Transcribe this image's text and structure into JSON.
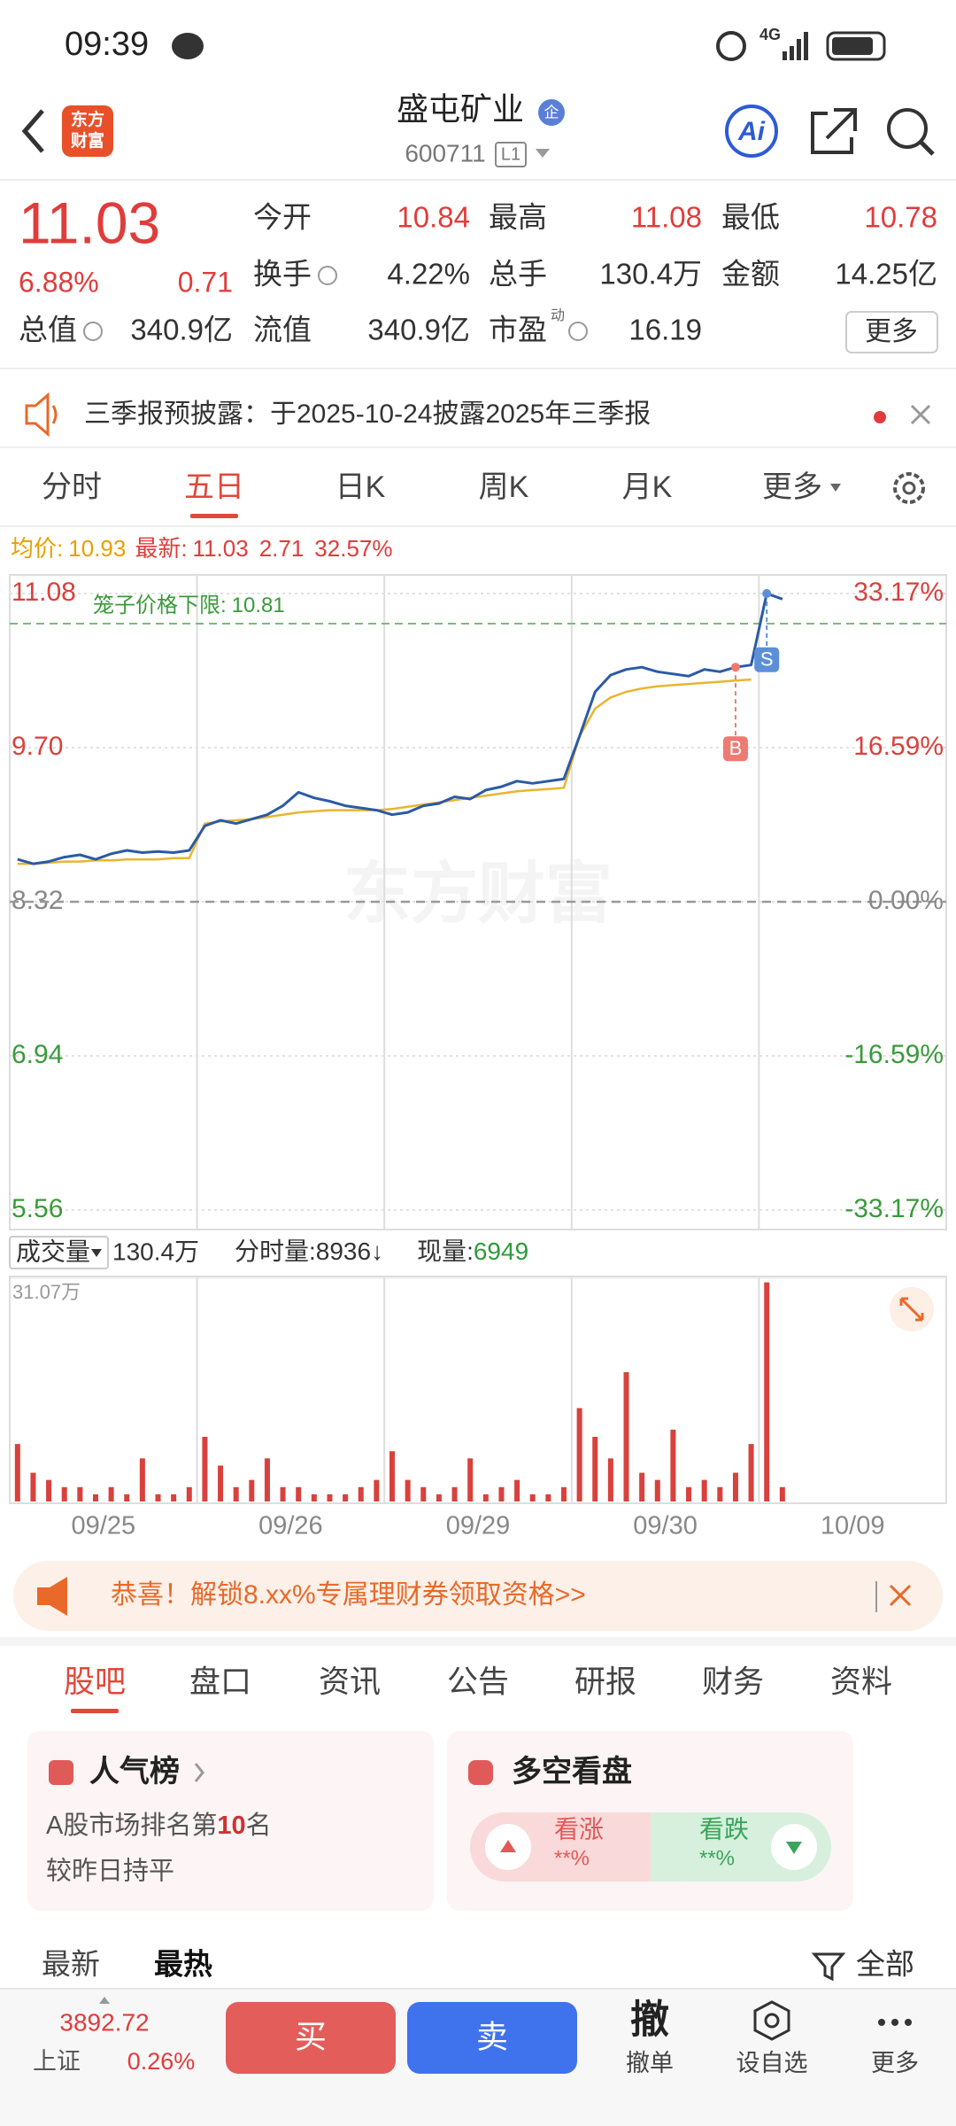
{
  "status_bar": {
    "time": "09:39",
    "network": "4G"
  },
  "header": {
    "logo": [
      "东方",
      "财富"
    ],
    "name": "盛屯矿业",
    "badge": "企",
    "code": "600711",
    "level": "L1",
    "ai": "Ai"
  },
  "quote": {
    "price": "11.03",
    "change_pct": "6.88%",
    "change": "0.71",
    "fields": [
      {
        "label": "今开",
        "value": "10.84"
      },
      {
        "label": "最高",
        "value": "11.08"
      },
      {
        "label": "最低",
        "value": "10.78"
      },
      {
        "label": "换手",
        "value": "4.22%"
      },
      {
        "label": "总手",
        "value": "130.4万"
      },
      {
        "label": "金额",
        "value": "14.25亿"
      },
      {
        "label": "总值",
        "value": "340.9亿"
      },
      {
        "label": "流值",
        "value": "340.9亿"
      },
      {
        "label": "市盈",
        "sup": "动",
        "value": "16.19"
      }
    ],
    "more": "更多"
  },
  "notice": "三季报预披露：于2025-10-24披露2025年三季报",
  "chart_tabs": {
    "items": [
      "分时",
      "五日",
      "日K",
      "周K",
      "月K",
      "更多"
    ],
    "active": 1
  },
  "chart_info": {
    "avg": "10.93",
    "latest": "11.03",
    "change": "2.71",
    "change_pct": "32.57%"
  },
  "chart_data": [
    {
      "type": "line",
      "watermark": "东方财富",
      "ylim": [
        5.56,
        11.08
      ],
      "yticks": [
        11.08,
        {
          "value": 9.7,
          "label": "9.70"
        },
        8.32,
        6.94,
        5.56
      ],
      "y2lim": [
        -33.17,
        33.17
      ],
      "y2ticks": [
        {
          "value": 33.17,
          "label": "33.17%"
        },
        {
          "value": 16.59,
          "label": "16.59%"
        },
        {
          "value": 0,
          "label": "0.00%"
        },
        {
          "value": -16.59,
          "label": "-16.59%"
        },
        {
          "value": -33.17,
          "label": "-33.17%"
        }
      ],
      "limit_label": "笼子价格下限:",
      "limit": 10.81,
      "trade_marks": [
        "B",
        "S"
      ],
      "series": [
        {
          "name": "最新:",
          "color": "#2b5aa6",
          "values": [
            8.7,
            8.66,
            8.68,
            8.72,
            8.74,
            8.7,
            8.75,
            8.78,
            8.76,
            8.77,
            8.76,
            8.78,
            9.0,
            9.05,
            9.02,
            9.06,
            9.1,
            9.18,
            9.3,
            9.25,
            9.22,
            9.18,
            9.16,
            9.14,
            9.1,
            9.12,
            9.18,
            9.2,
            9.26,
            9.24,
            9.32,
            9.35,
            9.4,
            9.38,
            9.4,
            9.42,
            9.8,
            10.2,
            10.35,
            10.4,
            10.42,
            10.38,
            10.36,
            10.34,
            10.4,
            10.38,
            10.42,
            10.44,
            11.08,
            11.03,
            null,
            null,
            null,
            null,
            null,
            null,
            null,
            null,
            null,
            null
          ]
        },
        {
          "name": "均价:",
          "color": "#e9b530",
          "values": [
            8.66,
            8.66,
            8.67,
            8.68,
            8.68,
            8.69,
            8.69,
            8.7,
            8.7,
            8.7,
            8.71,
            8.71,
            9.02,
            9.04,
            9.05,
            9.06,
            9.08,
            9.1,
            9.12,
            9.13,
            9.14,
            9.14,
            9.14,
            9.14,
            9.15,
            9.17,
            9.19,
            9.21,
            9.23,
            9.25,
            9.27,
            9.29,
            9.31,
            9.32,
            9.33,
            9.34,
            9.8,
            10.05,
            10.15,
            10.2,
            10.23,
            10.25,
            10.26,
            10.27,
            10.28,
            10.29,
            10.3,
            10.31,
            null,
            null,
            null,
            null,
            null,
            null,
            null,
            null,
            null,
            null,
            null,
            null
          ]
        }
      ]
    },
    {
      "type": "bar",
      "title": "成交量",
      "total": "130.4万",
      "tick_volume_label": "分时量:",
      "tick_volume": "8936↓",
      "current_label": "现量:",
      "current": "6949",
      "ylim": [
        0,
        31.07
      ],
      "yticks": [
        {
          "value": 31.07,
          "label": "31.07万"
        }
      ],
      "days": [
        "09/25",
        "09/26",
        "09/29",
        "09/30",
        "10/09"
      ],
      "color": "#d9413c",
      "values": [
        8,
        4,
        3,
        2,
        2,
        1,
        2,
        1,
        6,
        1,
        1,
        2,
        9,
        5,
        2,
        3,
        6,
        2,
        2,
        1,
        1,
        1,
        2,
        3,
        7,
        3,
        2,
        1,
        2,
        6,
        1,
        2,
        3,
        1,
        1,
        2,
        13,
        9,
        6,
        18,
        4,
        3,
        10,
        2,
        3,
        2,
        4,
        8,
        30.5,
        2,
        null,
        null,
        null,
        null,
        null,
        null,
        null,
        null,
        null,
        null
      ]
    }
  ],
  "promo": "恭喜！解锁8.xx%专属理财券领取资格>>",
  "tabs": {
    "items": [
      "股吧",
      "盘口",
      "资讯",
      "公告",
      "研报",
      "财务",
      "资料"
    ],
    "active": 0
  },
  "cards": {
    "popularity": {
      "title": "人气榜",
      "rank_prefix": "A股市场排名第",
      "rank": "10",
      "rank_suffix": "名",
      "note": "较昨日持平"
    },
    "sentiment": {
      "title": "多空看盘",
      "up_label": "看涨",
      "up_value": "**%",
      "down_label": "看跌",
      "down_value": "**%"
    }
  },
  "feed_tabs": {
    "items": [
      "最新",
      "最热"
    ],
    "active": 1,
    "filter": "全部"
  },
  "bottom_bar": {
    "index_value": "3892.72",
    "index_name": "上证",
    "index_change": "0.26%",
    "buy": "买",
    "sell": "卖",
    "cancel_icon": "撤",
    "cancel": "撤单",
    "watch": "设自选",
    "more": "更多"
  }
}
